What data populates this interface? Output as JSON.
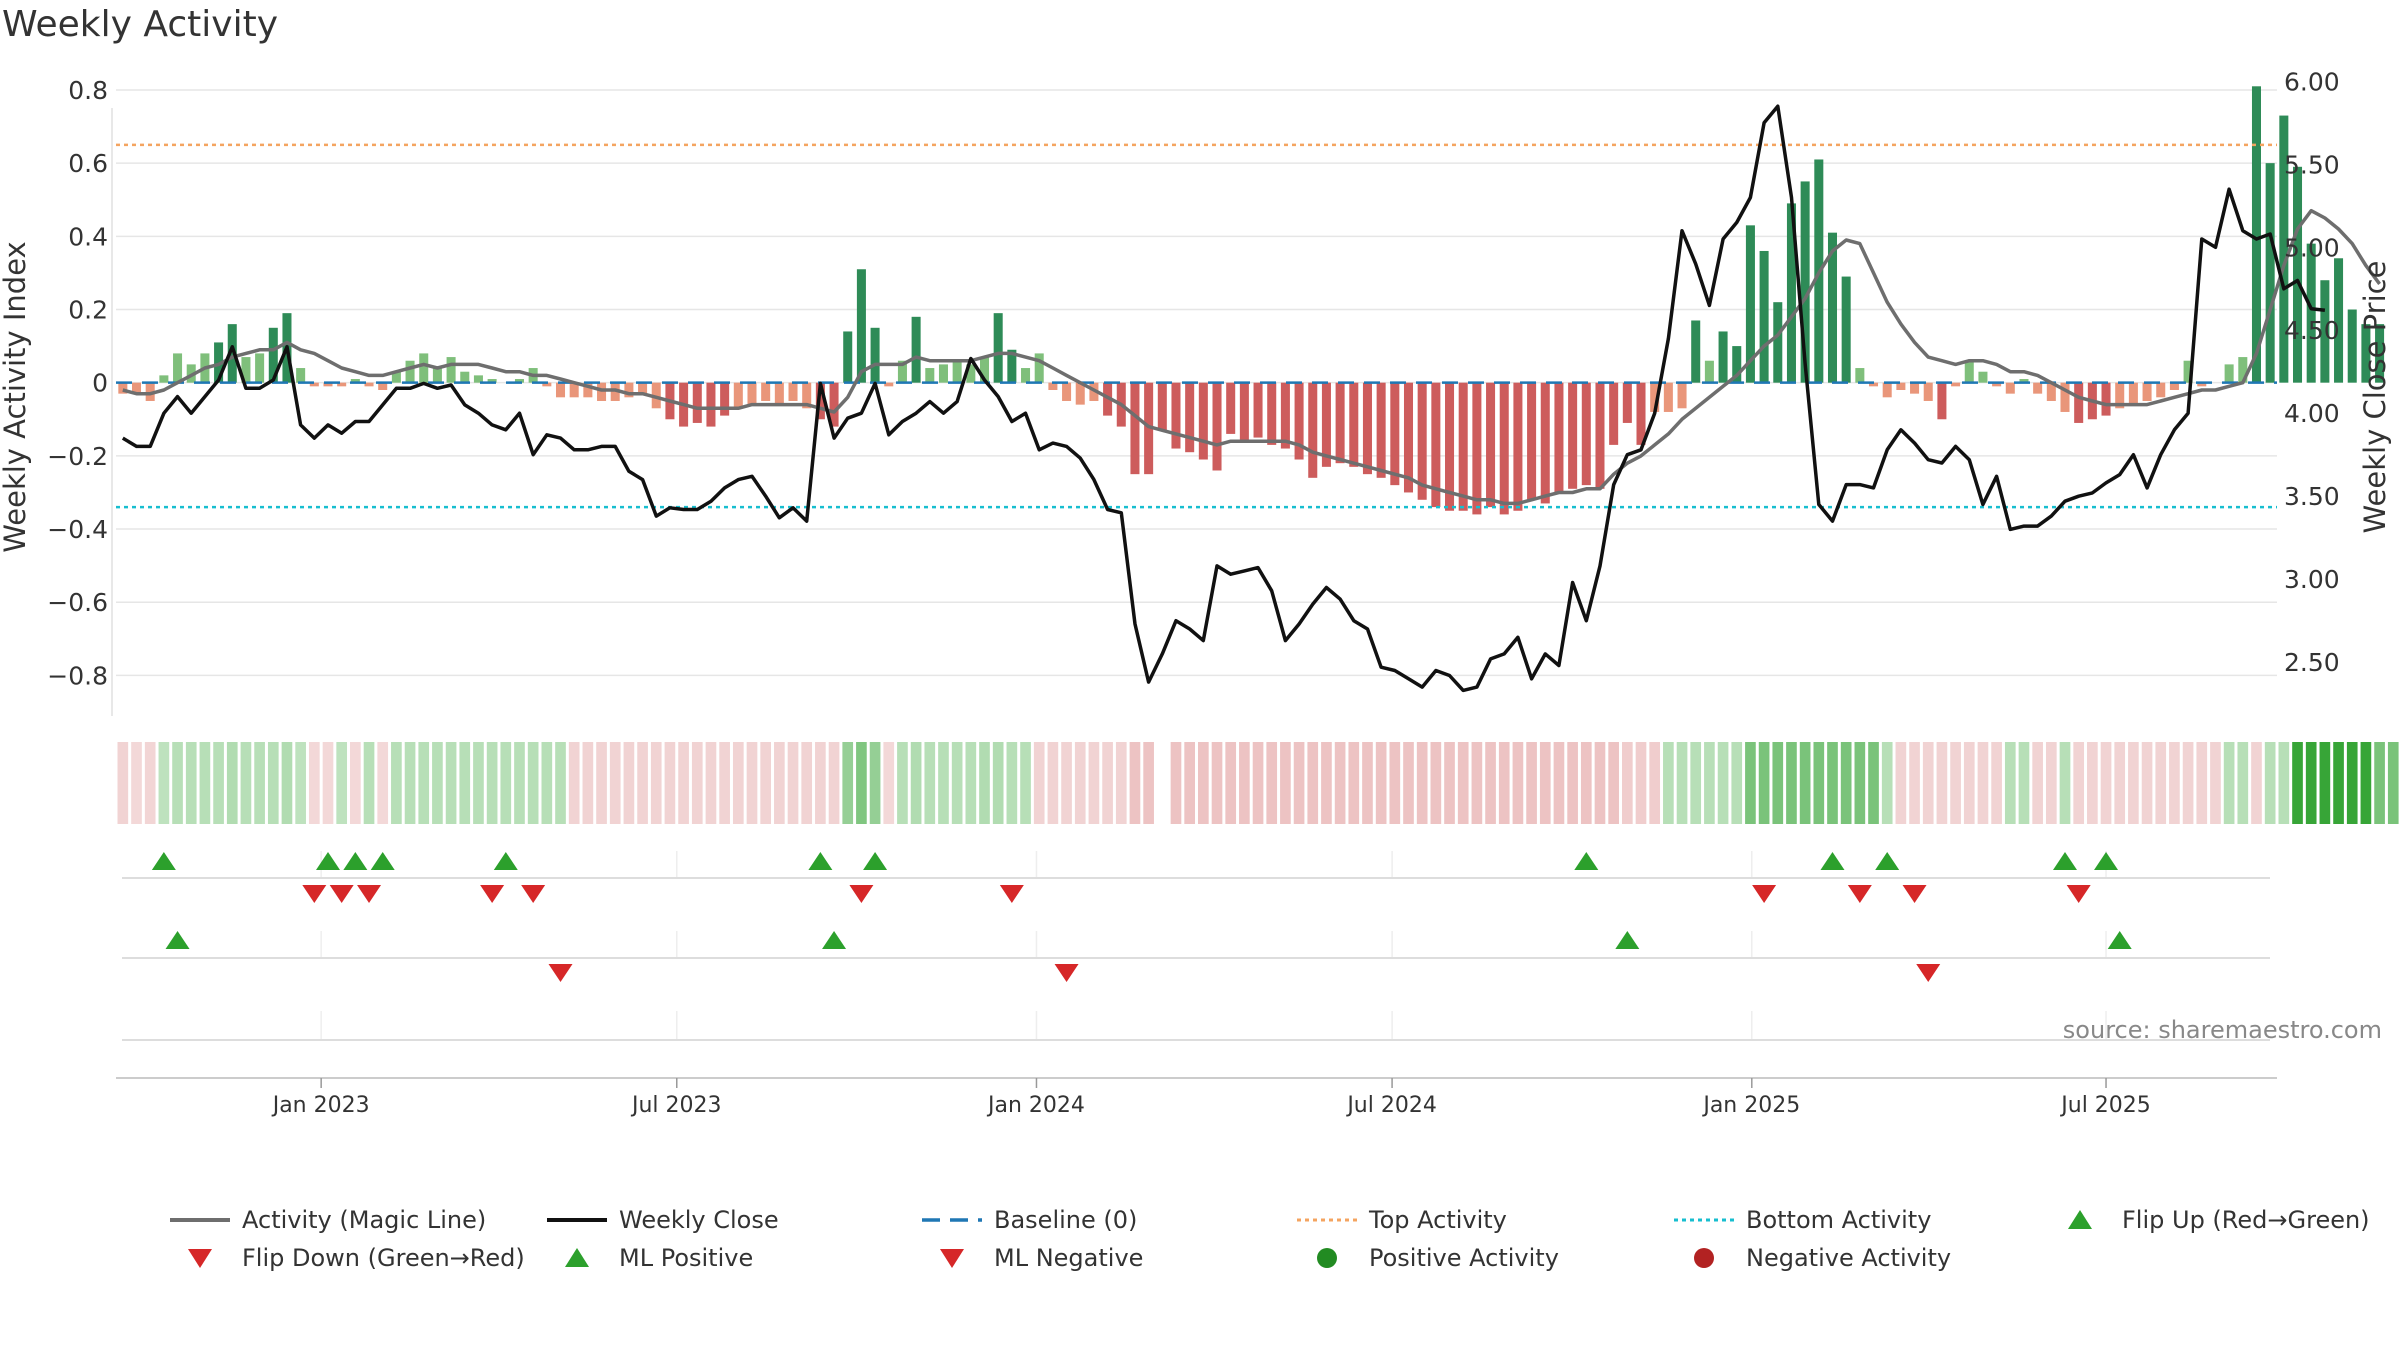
{
  "chart_data": {
    "type": "bar",
    "title": "Weekly Activity",
    "ylabel": "Weekly Activity Index",
    "ylabel_right": "Weekly Close Price",
    "ylim": [
      -0.9,
      0.86
    ],
    "ylim_right": [
      2.2,
      6.08
    ],
    "yticks": [
      0.8,
      0.6,
      0.4,
      0.2,
      0,
      -0.2,
      -0.4,
      -0.6,
      -0.8
    ],
    "ytick_labels": [
      "0.8",
      "0.6",
      "0.4",
      "0.2",
      "0",
      "−0.2",
      "−0.4",
      "−0.6",
      "−0.8"
    ],
    "yticks_right": [
      6.0,
      5.5,
      5.0,
      4.5,
      4.0,
      3.5,
      3.0,
      2.5
    ],
    "ytick_labels_right": [
      "6.00",
      "5.50",
      "5.00",
      "4.50",
      "4.00",
      "3.50",
      "3.00",
      "2.50"
    ],
    "xticks": [
      {
        "label": "Jan 2023",
        "week": 15
      },
      {
        "label": "Jul 2023",
        "week": 41
      },
      {
        "label": "Jan 2024",
        "week": 67.3
      },
      {
        "label": "Jul 2024",
        "week": 93.3
      },
      {
        "label": "Jan 2025",
        "week": 119.6
      },
      {
        "label": "Jul 2025",
        "week": 145.5
      }
    ],
    "week_count": 158,
    "first_week": "2022-09-26",
    "weeks": {
      "activity": [
        -0.03,
        -0.03,
        -0.05,
        0.02,
        0.08,
        0.05,
        0.08,
        0.11,
        0.16,
        0.07,
        0.08,
        0.15,
        0.19,
        0.04,
        -0.01,
        -0.01,
        -0.01,
        0.01,
        -0.01,
        -0.02,
        0.03,
        0.06,
        0.08,
        0.04,
        0.07,
        0.03,
        0.02,
        0.01,
        0.0,
        0.01,
        0.04,
        -0.01,
        -0.04,
        -0.04,
        -0.04,
        -0.05,
        -0.05,
        -0.04,
        -0.03,
        -0.07,
        -0.1,
        -0.12,
        -0.11,
        -0.12,
        -0.09,
        -0.07,
        -0.06,
        -0.05,
        -0.06,
        -0.05,
        -0.07,
        -0.1,
        -0.12,
        0.14,
        0.31,
        0.15,
        -0.01,
        0.06,
        0.18,
        0.04,
        0.05,
        0.06,
        0.05,
        0.07,
        0.19,
        0.09,
        0.04,
        0.08,
        -0.02,
        -0.05,
        -0.06,
        -0.05,
        -0.09,
        -0.12,
        -0.25,
        -0.25,
        -0.13,
        -0.18,
        -0.19,
        -0.21,
        -0.24,
        -0.14,
        -0.16,
        -0.15,
        -0.17,
        -0.18,
        -0.21,
        -0.26,
        -0.23,
        -0.22,
        -0.23,
        -0.25,
        -0.26,
        -0.28,
        -0.3,
        -0.32,
        -0.34,
        -0.35,
        -0.35,
        -0.36,
        -0.34,
        -0.36,
        -0.35,
        -0.32,
        -0.33,
        -0.3,
        -0.29,
        -0.28,
        -0.29,
        -0.17,
        -0.11,
        -0.17,
        -0.08,
        -0.08,
        -0.07,
        0.17,
        0.06,
        0.14,
        0.1,
        0.43,
        0.36,
        0.22,
        0.49,
        0.55,
        0.61,
        0.41,
        0.29,
        0.04,
        -0.01,
        -0.04,
        -0.02,
        -0.03,
        -0.05,
        -0.1,
        -0.01,
        0.06,
        0.03,
        -0.01,
        -0.03,
        0.01,
        -0.03,
        -0.05,
        -0.08,
        -0.11,
        -0.1,
        -0.09,
        -0.07,
        -0.06,
        -0.05,
        -0.04,
        -0.02,
        0.06,
        -0.01,
        0.0,
        0.05,
        0.07,
        0.81,
        0.6,
        0.73,
        0.59,
        0.38,
        0.28,
        0.34,
        0.2,
        0.16,
        0.16
      ],
      "magic_line": [
        -0.02,
        -0.03,
        -0.03,
        -0.02,
        0.0,
        0.02,
        0.04,
        0.05,
        0.07,
        0.08,
        0.09,
        0.09,
        0.11,
        0.09,
        0.08,
        0.06,
        0.04,
        0.03,
        0.02,
        0.02,
        0.03,
        0.04,
        0.05,
        0.04,
        0.05,
        0.05,
        0.05,
        0.04,
        0.03,
        0.03,
        0.02,
        0.02,
        0.01,
        0.0,
        -0.01,
        -0.02,
        -0.02,
        -0.03,
        -0.03,
        -0.04,
        -0.05,
        -0.06,
        -0.07,
        -0.07,
        -0.07,
        -0.07,
        -0.06,
        -0.06,
        -0.06,
        -0.06,
        -0.06,
        -0.07,
        -0.08,
        -0.04,
        0.03,
        0.05,
        0.05,
        0.05,
        0.07,
        0.06,
        0.06,
        0.06,
        0.06,
        0.07,
        0.08,
        0.08,
        0.07,
        0.06,
        0.04,
        0.02,
        0.0,
        -0.02,
        -0.04,
        -0.06,
        -0.09,
        -0.12,
        -0.13,
        -0.14,
        -0.15,
        -0.16,
        -0.17,
        -0.16,
        -0.16,
        -0.16,
        -0.16,
        -0.16,
        -0.17,
        -0.19,
        -0.2,
        -0.21,
        -0.22,
        -0.23,
        -0.24,
        -0.25,
        -0.26,
        -0.28,
        -0.29,
        -0.3,
        -0.31,
        -0.32,
        -0.32,
        -0.33,
        -0.33,
        -0.32,
        -0.31,
        -0.3,
        -0.3,
        -0.29,
        -0.29,
        -0.25,
        -0.22,
        -0.2,
        -0.17,
        -0.14,
        -0.1,
        -0.07,
        -0.04,
        -0.01,
        0.02,
        0.06,
        0.1,
        0.13,
        0.18,
        0.23,
        0.3,
        0.36,
        0.39,
        0.38,
        0.3,
        0.22,
        0.16,
        0.11,
        0.07,
        0.06,
        0.05,
        0.06,
        0.06,
        0.05,
        0.03,
        0.03,
        0.02,
        0.0,
        -0.02,
        -0.04,
        -0.05,
        -0.06,
        -0.06,
        -0.06,
        -0.06,
        -0.05,
        -0.04,
        -0.03,
        -0.02,
        -0.02,
        -0.01,
        0.0,
        0.08,
        0.2,
        0.32,
        0.42,
        0.47,
        0.45,
        0.42,
        0.38,
        0.32,
        0.27
      ],
      "close": [
        3.85,
        3.8,
        3.8,
        4.0,
        4.1,
        4.0,
        4.1,
        4.2,
        4.4,
        4.15,
        4.15,
        4.2,
        4.4,
        3.93,
        3.85,
        3.93,
        3.88,
        3.95,
        3.95,
        4.05,
        4.15,
        4.15,
        4.18,
        4.15,
        4.17,
        4.05,
        4.0,
        3.93,
        3.9,
        4.0,
        3.75,
        3.87,
        3.85,
        3.78,
        3.78,
        3.8,
        3.8,
        3.65,
        3.6,
        3.38,
        3.43,
        3.42,
        3.42,
        3.47,
        3.55,
        3.6,
        3.62,
        3.5,
        3.37,
        3.43,
        3.35,
        4.18,
        3.85,
        3.97,
        4.0,
        4.18,
        3.87,
        3.95,
        4.0,
        4.07,
        4.0,
        4.07,
        4.33,
        4.2,
        4.1,
        3.95,
        4.0,
        3.78,
        3.82,
        3.8,
        3.73,
        3.6,
        3.42,
        3.4,
        2.73,
        2.38,
        2.55,
        2.75,
        2.7,
        2.63,
        3.08,
        3.03,
        3.05,
        3.07,
        2.93,
        2.63,
        2.73,
        2.85,
        2.95,
        2.88,
        2.75,
        2.7,
        2.47,
        2.45,
        2.4,
        2.35,
        2.45,
        2.42,
        2.33,
        2.35,
        2.52,
        2.55,
        2.65,
        2.4,
        2.55,
        2.48,
        2.98,
        2.75,
        3.08,
        3.57,
        3.75,
        3.78,
        4.0,
        4.45,
        5.1,
        4.9,
        4.65,
        5.05,
        5.15,
        5.3,
        5.75,
        5.85,
        5.3,
        4.3,
        3.45,
        3.35,
        3.57,
        3.57,
        3.55,
        3.78,
        3.9,
        3.82,
        3.72,
        3.7,
        3.8,
        3.72,
        3.45,
        3.62,
        3.3,
        3.32,
        3.32,
        3.38,
        3.47,
        3.5,
        3.52,
        3.58,
        3.63,
        3.75,
        3.55,
        3.75,
        3.9,
        4.0,
        5.05,
        5.0,
        5.35,
        5.1,
        5.05,
        5.08,
        4.75,
        4.8,
        4.63,
        4.62
      ],
      "strip": [
        -0.12,
        -0.1,
        -0.11,
        0.04,
        0.05,
        0.05,
        0.05,
        0.05,
        0.06,
        0.05,
        0.05,
        0.05,
        0.06,
        0.04,
        -0.1,
        -0.1,
        0.04,
        -0.1,
        0.05,
        -0.1,
        0.05,
        0.05,
        0.05,
        0.05,
        0.05,
        0.05,
        0.05,
        0.05,
        0.05,
        0.05,
        0.05,
        0.05,
        0.05,
        -0.12,
        -0.12,
        -0.12,
        -0.12,
        -0.12,
        -0.12,
        -0.12,
        -0.12,
        -0.12,
        -0.12,
        -0.12,
        -0.12,
        -0.12,
        -0.12,
        -0.12,
        -0.12,
        -0.12,
        -0.12,
        -0.12,
        -0.12,
        0.1,
        0.13,
        0.1,
        -0.1,
        0.05,
        0.06,
        0.05,
        0.05,
        0.05,
        0.05,
        0.06,
        0.06,
        0.05,
        0.05,
        -0.12,
        -0.12,
        -0.12,
        -0.12,
        -0.12,
        -0.12,
        -0.12,
        -0.2,
        -0.2,
        null,
        -0.2,
        -0.2,
        -0.2,
        -0.2,
        -0.2,
        -0.2,
        -0.2,
        -0.2,
        -0.2,
        -0.2,
        -0.2,
        -0.2,
        -0.2,
        -0.2,
        -0.2,
        -0.2,
        -0.2,
        -0.2,
        -0.2,
        -0.2,
        -0.2,
        -0.2,
        -0.2,
        -0.2,
        -0.2,
        -0.2,
        -0.2,
        -0.2,
        -0.2,
        -0.2,
        -0.2,
        -0.2,
        -0.2,
        -0.15,
        -0.15,
        -0.15,
        0.05,
        0.05,
        0.05,
        0.05,
        0.05,
        0.05,
        0.14,
        0.14,
        0.14,
        0.14,
        0.14,
        0.14,
        0.14,
        0.14,
        0.14,
        0.14,
        0.05,
        -0.12,
        -0.12,
        -0.12,
        -0.12,
        -0.12,
        -0.12,
        -0.12,
        -0.12,
        0.05,
        0.05,
        -0.12,
        -0.12,
        0.05,
        -0.12,
        -0.12,
        -0.12,
        -0.12,
        -0.12,
        -0.12,
        -0.12,
        -0.12,
        -0.12,
        -0.12,
        -0.12,
        0.05,
        0.05,
        -0.12,
        0.05,
        0.05,
        0.25,
        0.25,
        0.25,
        0.25,
        0.25,
        0.25,
        0.14,
        0.14,
        0.14,
        0.14
      ]
    },
    "top_activity": 0.65,
    "bottom_activity": -0.34,
    "baseline": 0,
    "flip_up_weeks": [
      3,
      15,
      17,
      19,
      28,
      51,
      55,
      107,
      125,
      129,
      142,
      145
    ],
    "flip_down_weeks": [
      14,
      16,
      18,
      27,
      30,
      54,
      65,
      120,
      127,
      131,
      143
    ],
    "ml_positive_weeks": [
      4,
      52,
      110,
      146
    ],
    "ml_negative_weeks": [
      32,
      69,
      132
    ],
    "colors": {
      "strong_green": "#2e8b57",
      "light_green": "#7fbf7b",
      "strong_red": "#cd5c5c",
      "light_red": "#e9967a",
      "magic_line": "#6e6e6e",
      "close": "#111111",
      "baseline": "#1f77b4",
      "top": "#f4a460",
      "bottom": "#17becf",
      "marker_up": "#2ca02c",
      "marker_down": "#d62728",
      "pos_activity": "#228b22",
      "neg_activity": "#b22222",
      "grid": "#e6e6e6"
    },
    "legend": [
      {
        "label": "Activity (Magic Line)",
        "symbol": "line",
        "color": "#6e6e6e"
      },
      {
        "label": "Weekly Close",
        "symbol": "line",
        "color": "#111111"
      },
      {
        "label": "Baseline (0)",
        "symbol": "dash",
        "color": "#1f77b4"
      },
      {
        "label": "Top Activity",
        "symbol": "dot",
        "color": "#f4a460"
      },
      {
        "label": "Bottom Activity",
        "symbol": "dot",
        "color": "#17becf"
      },
      {
        "label": "Flip Up (Red→Green)",
        "symbol": "tri-up",
        "color": "#2ca02c"
      },
      {
        "label": "Flip Down (Green→Red)",
        "symbol": "tri-down",
        "color": "#d62728"
      },
      {
        "label": "ML Positive",
        "symbol": "tri-up",
        "color": "#2ca02c"
      },
      {
        "label": "ML Negative",
        "symbol": "tri-down",
        "color": "#d62728"
      },
      {
        "label": "Positive Activity",
        "symbol": "circle",
        "color": "#228b22"
      },
      {
        "label": "Negative Activity",
        "symbol": "circle",
        "color": "#b22222"
      }
    ],
    "source": "source: sharemaestro.com"
  }
}
